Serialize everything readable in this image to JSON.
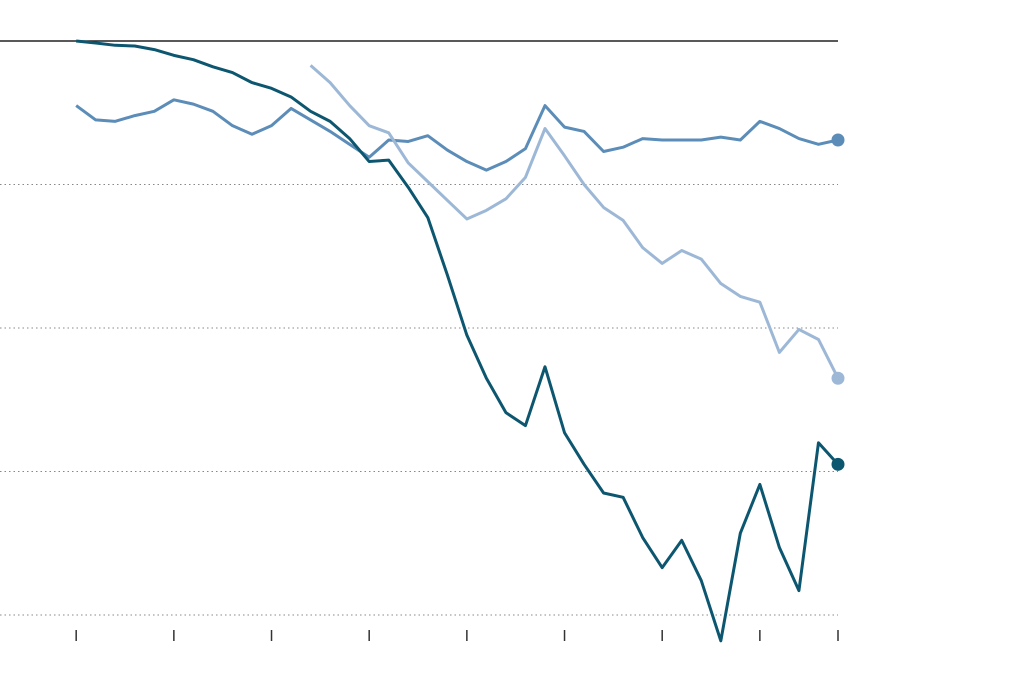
{
  "chart_data": {
    "type": "line",
    "x": [
      0,
      1,
      2,
      3,
      4,
      5,
      6,
      7,
      8,
      9,
      10,
      11,
      12,
      13,
      14,
      15,
      16,
      17,
      18,
      19,
      20,
      21,
      22,
      23,
      24,
      25,
      26,
      27,
      28,
      29,
      30,
      31,
      32,
      33,
      34,
      35,
      36,
      37,
      38,
      39
    ],
    "xlim": [
      -3.9,
      39
    ],
    "xticks": [
      0,
      5,
      10,
      15,
      20,
      25,
      30,
      35,
      39
    ],
    "ylim": [
      -4.2,
      0
    ],
    "yticks": [
      0,
      -1,
      -2,
      -3,
      -4
    ],
    "grid": true,
    "series": [
      {
        "color": "#5b8db8",
        "values": [
          -0.45,
          -0.55,
          -0.56,
          -0.52,
          -0.49,
          -0.41,
          -0.44,
          -0.49,
          -0.59,
          -0.65,
          -0.59,
          -0.47,
          -0.55,
          -0.63,
          -0.72,
          -0.81,
          -0.69,
          -0.7,
          -0.66,
          -0.76,
          -0.84,
          -0.9,
          -0.84,
          -0.75,
          -0.45,
          -0.6,
          -0.63,
          -0.77,
          -0.74,
          -0.68,
          -0.69,
          -0.69,
          -0.69,
          -0.67,
          -0.69,
          -0.56,
          -0.61,
          -0.68,
          -0.72,
          -0.69
        ]
      },
      {
        "color": "#9db8d6",
        "values": [
          null,
          null,
          null,
          null,
          null,
          null,
          null,
          null,
          null,
          null,
          null,
          null,
          -0.17,
          -0.29,
          -0.45,
          -0.59,
          -0.64,
          -0.85,
          -0.98,
          -1.11,
          -1.24,
          -1.18,
          -1.1,
          -0.95,
          -0.61,
          -0.8,
          -1.0,
          -1.16,
          -1.25,
          -1.44,
          -1.55,
          -1.46,
          -1.52,
          -1.69,
          -1.78,
          -1.82,
          -2.17,
          -2.01,
          -2.08,
          -2.35
        ]
      },
      {
        "color": "#0d5670",
        "values": [
          0,
          -0.014,
          -0.03,
          -0.035,
          -0.06,
          -0.1,
          -0.13,
          -0.18,
          -0.22,
          -0.29,
          -0.33,
          -0.39,
          -0.49,
          -0.56,
          -0.68,
          -0.84,
          -0.83,
          -1.02,
          -1.23,
          -1.63,
          -2.05,
          -2.35,
          -2.59,
          -2.68,
          -2.27,
          -2.73,
          -2.95,
          -3.15,
          -3.18,
          -3.46,
          -3.67,
          -3.48,
          -3.76,
          -4.18,
          -3.43,
          -3.09,
          -3.53,
          -3.83,
          -2.8,
          -2.95
        ]
      }
    ]
  }
}
